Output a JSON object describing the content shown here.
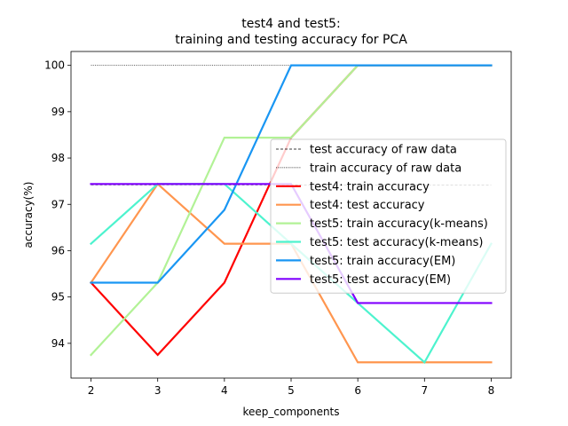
{
  "chart_data": {
    "type": "line",
    "title_line1": "test4 and test5:",
    "title_line2": "training and testing accuracy for PCA",
    "xlabel": "keep_components",
    "ylabel": "accuracy(%)",
    "xlim": [
      1.7,
      8.3
    ],
    "ylim": [
      93.25,
      100.3
    ],
    "xticks": [
      2,
      3,
      4,
      5,
      6,
      7,
      8
    ],
    "yticks": [
      94,
      95,
      96,
      97,
      98,
      99,
      100
    ],
    "grid": false,
    "legend_position": "center-right",
    "reference_lines": [
      {
        "name": "test accuracy of raw data",
        "y": 97.42,
        "x": [
          2,
          8
        ],
        "color": "#000000",
        "style": "dashed"
      },
      {
        "name": "train accuracy of raw data",
        "y": 100,
        "x": [
          2,
          8
        ],
        "color": "#000000",
        "style": "dotted"
      }
    ],
    "x": [
      2,
      3,
      4,
      5,
      6,
      7,
      8
    ],
    "series": [
      {
        "name": "test4: train accuracy",
        "color": "#ff0000",
        "values": [
          95.31,
          93.75,
          95.31,
          98.44,
          100,
          100,
          100
        ]
      },
      {
        "name": "test4: test accuracy",
        "color": "#ff964f",
        "values": [
          95.31,
          97.44,
          96.15,
          96.15,
          93.59,
          93.59,
          93.59
        ]
      },
      {
        "name": "test5: train accuracy(k-means)",
        "color": "#b2f296",
        "values": [
          93.75,
          95.31,
          98.44,
          98.44,
          100,
          100,
          100
        ]
      },
      {
        "name": "test5: test accuracy(k-means)",
        "color": "#4df3ce",
        "values": [
          96.15,
          97.44,
          97.44,
          96.15,
          94.87,
          93.59,
          96.15
        ]
      },
      {
        "name": "test5: train accuracy(EM)",
        "color": "#1996f3",
        "values": [
          95.31,
          95.31,
          96.88,
          100,
          100,
          100,
          100
        ]
      },
      {
        "name": "test5: test accuracy(EM)",
        "color": "#8000ff",
        "values": [
          97.44,
          97.44,
          97.44,
          97.44,
          94.87,
          94.87,
          94.87
        ]
      }
    ]
  }
}
